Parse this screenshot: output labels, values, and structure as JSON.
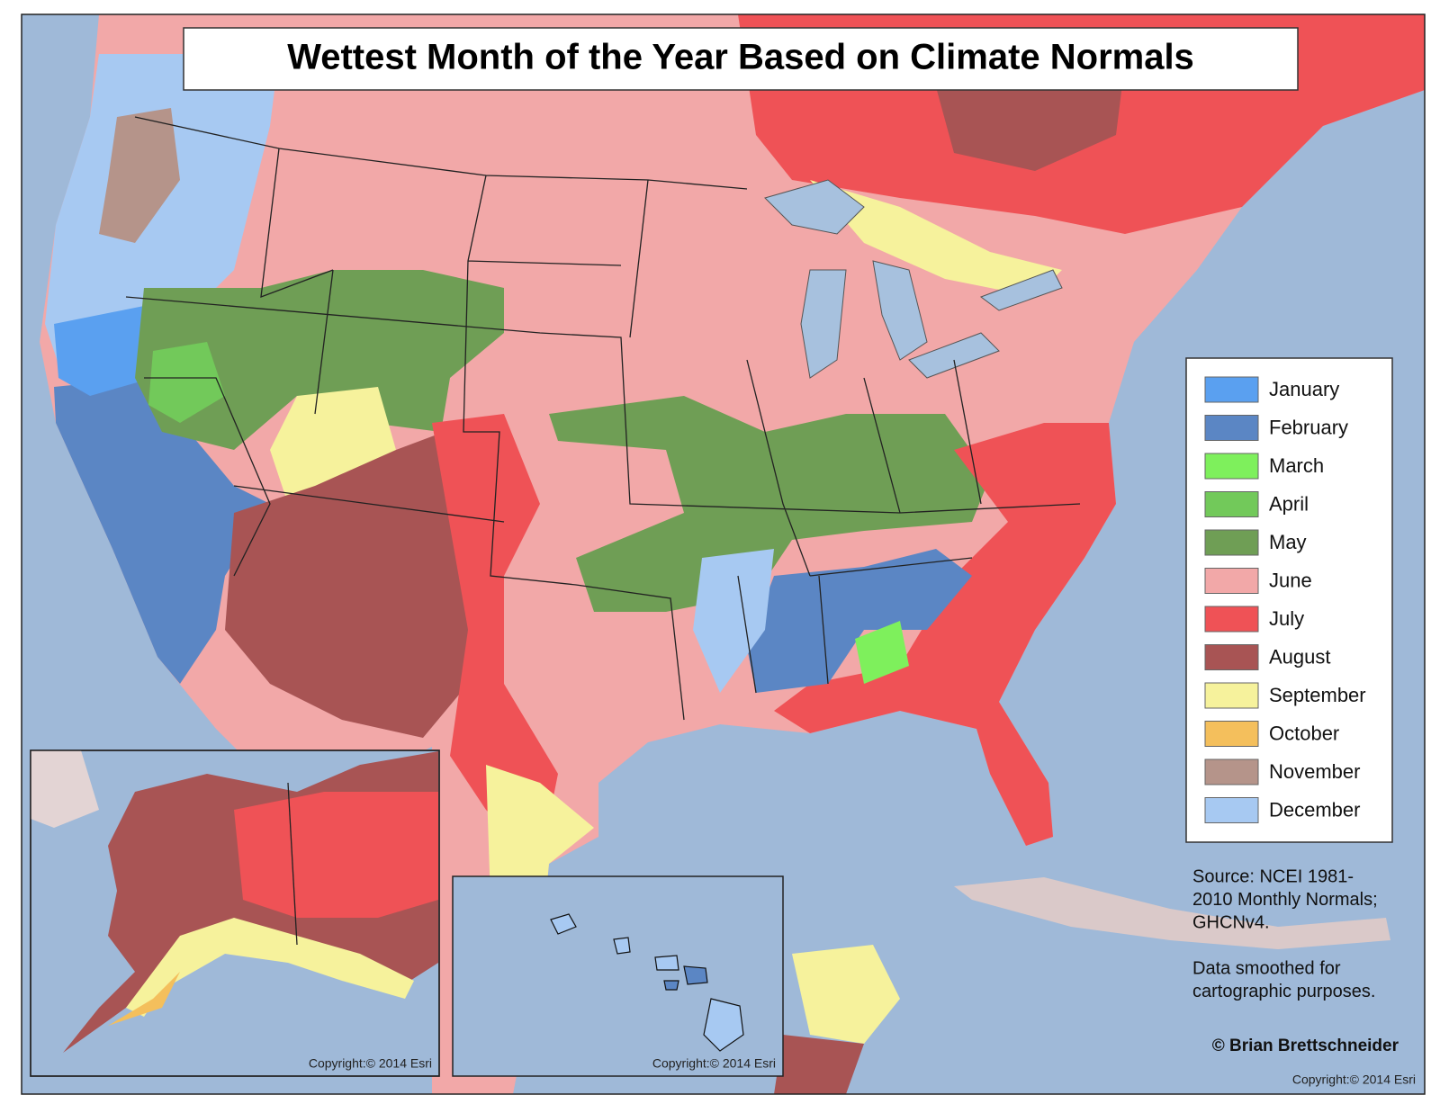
{
  "title": "Wettest Month of the Year Based on Climate Normals",
  "legend": {
    "items": [
      {
        "label": "January",
        "color": "#5aa0f0"
      },
      {
        "label": "February",
        "color": "#5b86c4"
      },
      {
        "label": "March",
        "color": "#7ef05c"
      },
      {
        "label": "April",
        "color": "#72c95a"
      },
      {
        "label": "May",
        "color": "#6f9e55"
      },
      {
        "label": "June",
        "color": "#f2a8a8"
      },
      {
        "label": "July",
        "color": "#ef5256"
      },
      {
        "label": "August",
        "color": "#a85454"
      },
      {
        "label": "September",
        "color": "#f6f29c"
      },
      {
        "label": "October",
        "color": "#f4bf5c"
      },
      {
        "label": "November",
        "color": "#b5948a"
      },
      {
        "label": "December",
        "color": "#a7c9f2"
      }
    ]
  },
  "source": [
    "Source: NCEI 1981-",
    "2010 Monthly Normals;",
    "GHCNv4."
  ],
  "note": [
    "Data smoothed for",
    "cartographic purposes."
  ],
  "author": "© Brian Brettschneider",
  "copyrights": [
    "Copyright:© 2014 Esri",
    "Copyright:© 2014 Esri",
    "Copyright:© 2014 Esri"
  ]
}
